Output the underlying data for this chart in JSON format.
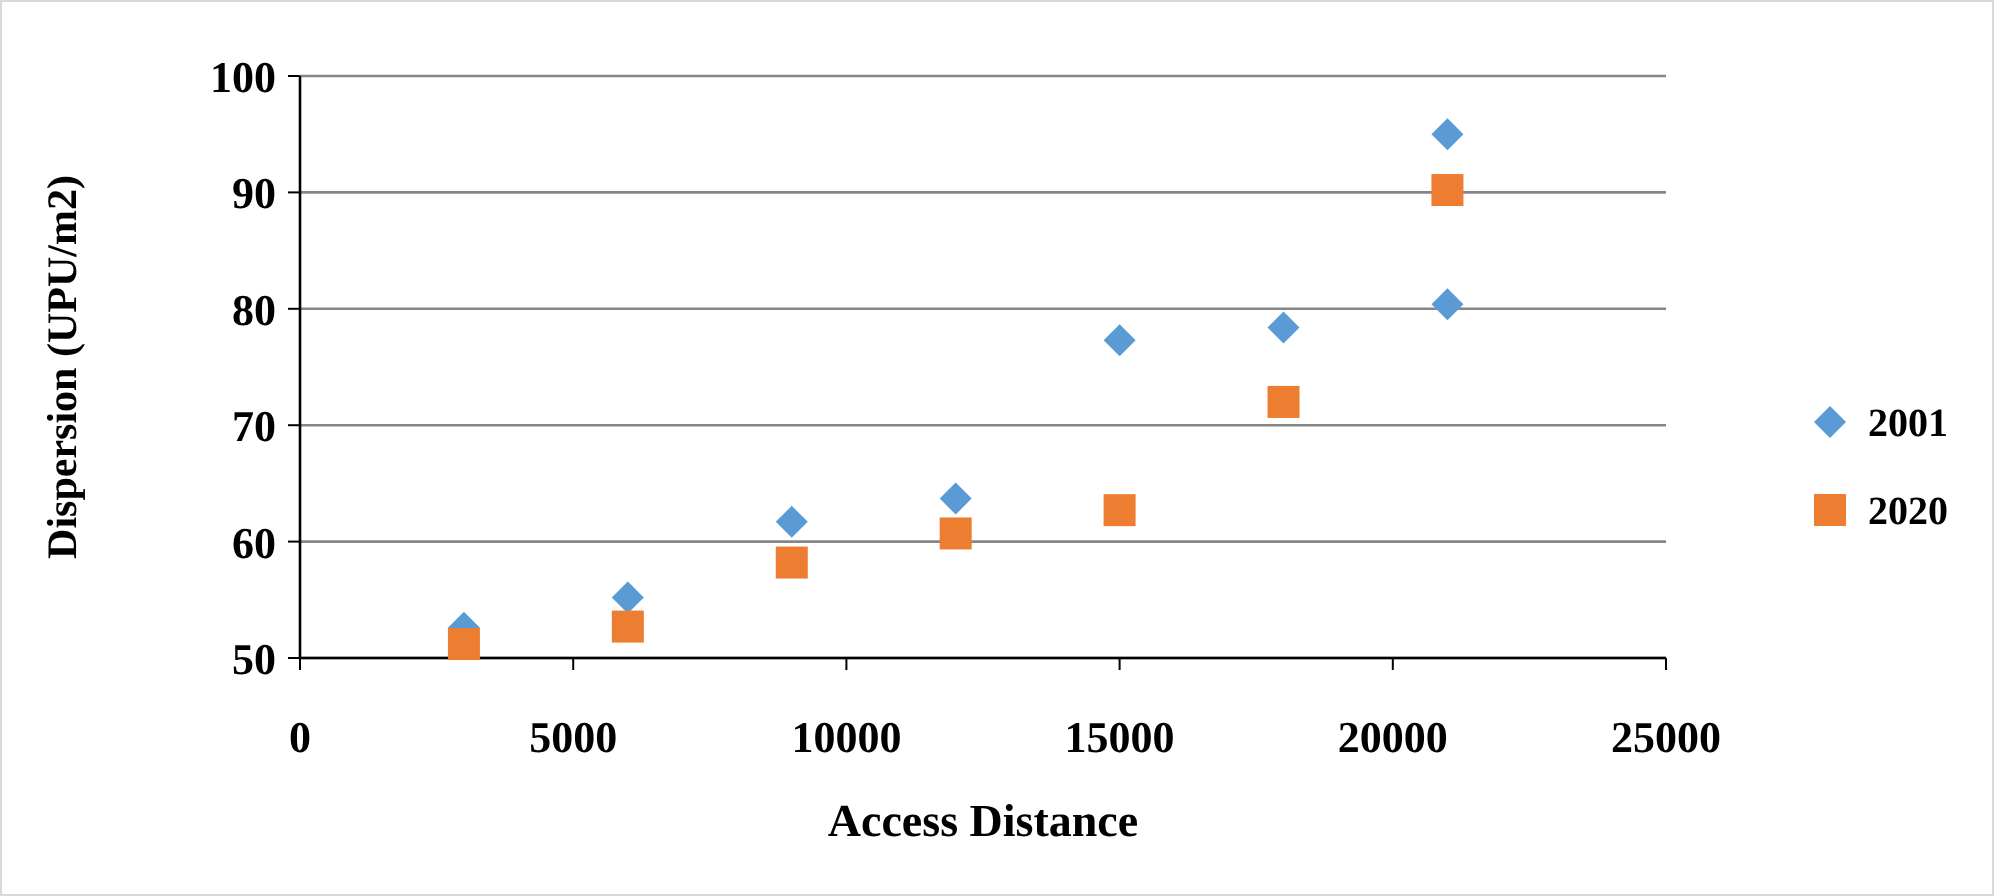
{
  "chart_data": {
    "type": "scatter",
    "xlabel": "Access Distance",
    "ylabel": "Dispersion (UPU/m2)",
    "xlim": [
      0,
      25000
    ],
    "xticks": [
      0,
      5000,
      10000,
      15000,
      20000,
      25000
    ],
    "ylim": [
      50,
      100
    ],
    "yticks": [
      50,
      60,
      70,
      80,
      90,
      100
    ],
    "grid": "y",
    "legend": "right",
    "series": [
      {
        "name": "2001",
        "color": "#5b9bd5",
        "marker": "diamond",
        "x": [
          3000,
          6000,
          9000,
          12000,
          15000,
          18000,
          21000,
          21000
        ],
        "values": [
          52.6,
          55.2,
          61.7,
          63.7,
          77.3,
          78.4,
          80.4,
          95.0
        ]
      },
      {
        "name": "2020",
        "color": "#ed7d31",
        "marker": "square",
        "x": [
          3000,
          6000,
          9000,
          12000,
          15000,
          18000,
          21000
        ],
        "values": [
          51.2,
          52.7,
          58.2,
          60.7,
          62.7,
          72.0,
          90.2
        ]
      }
    ]
  }
}
